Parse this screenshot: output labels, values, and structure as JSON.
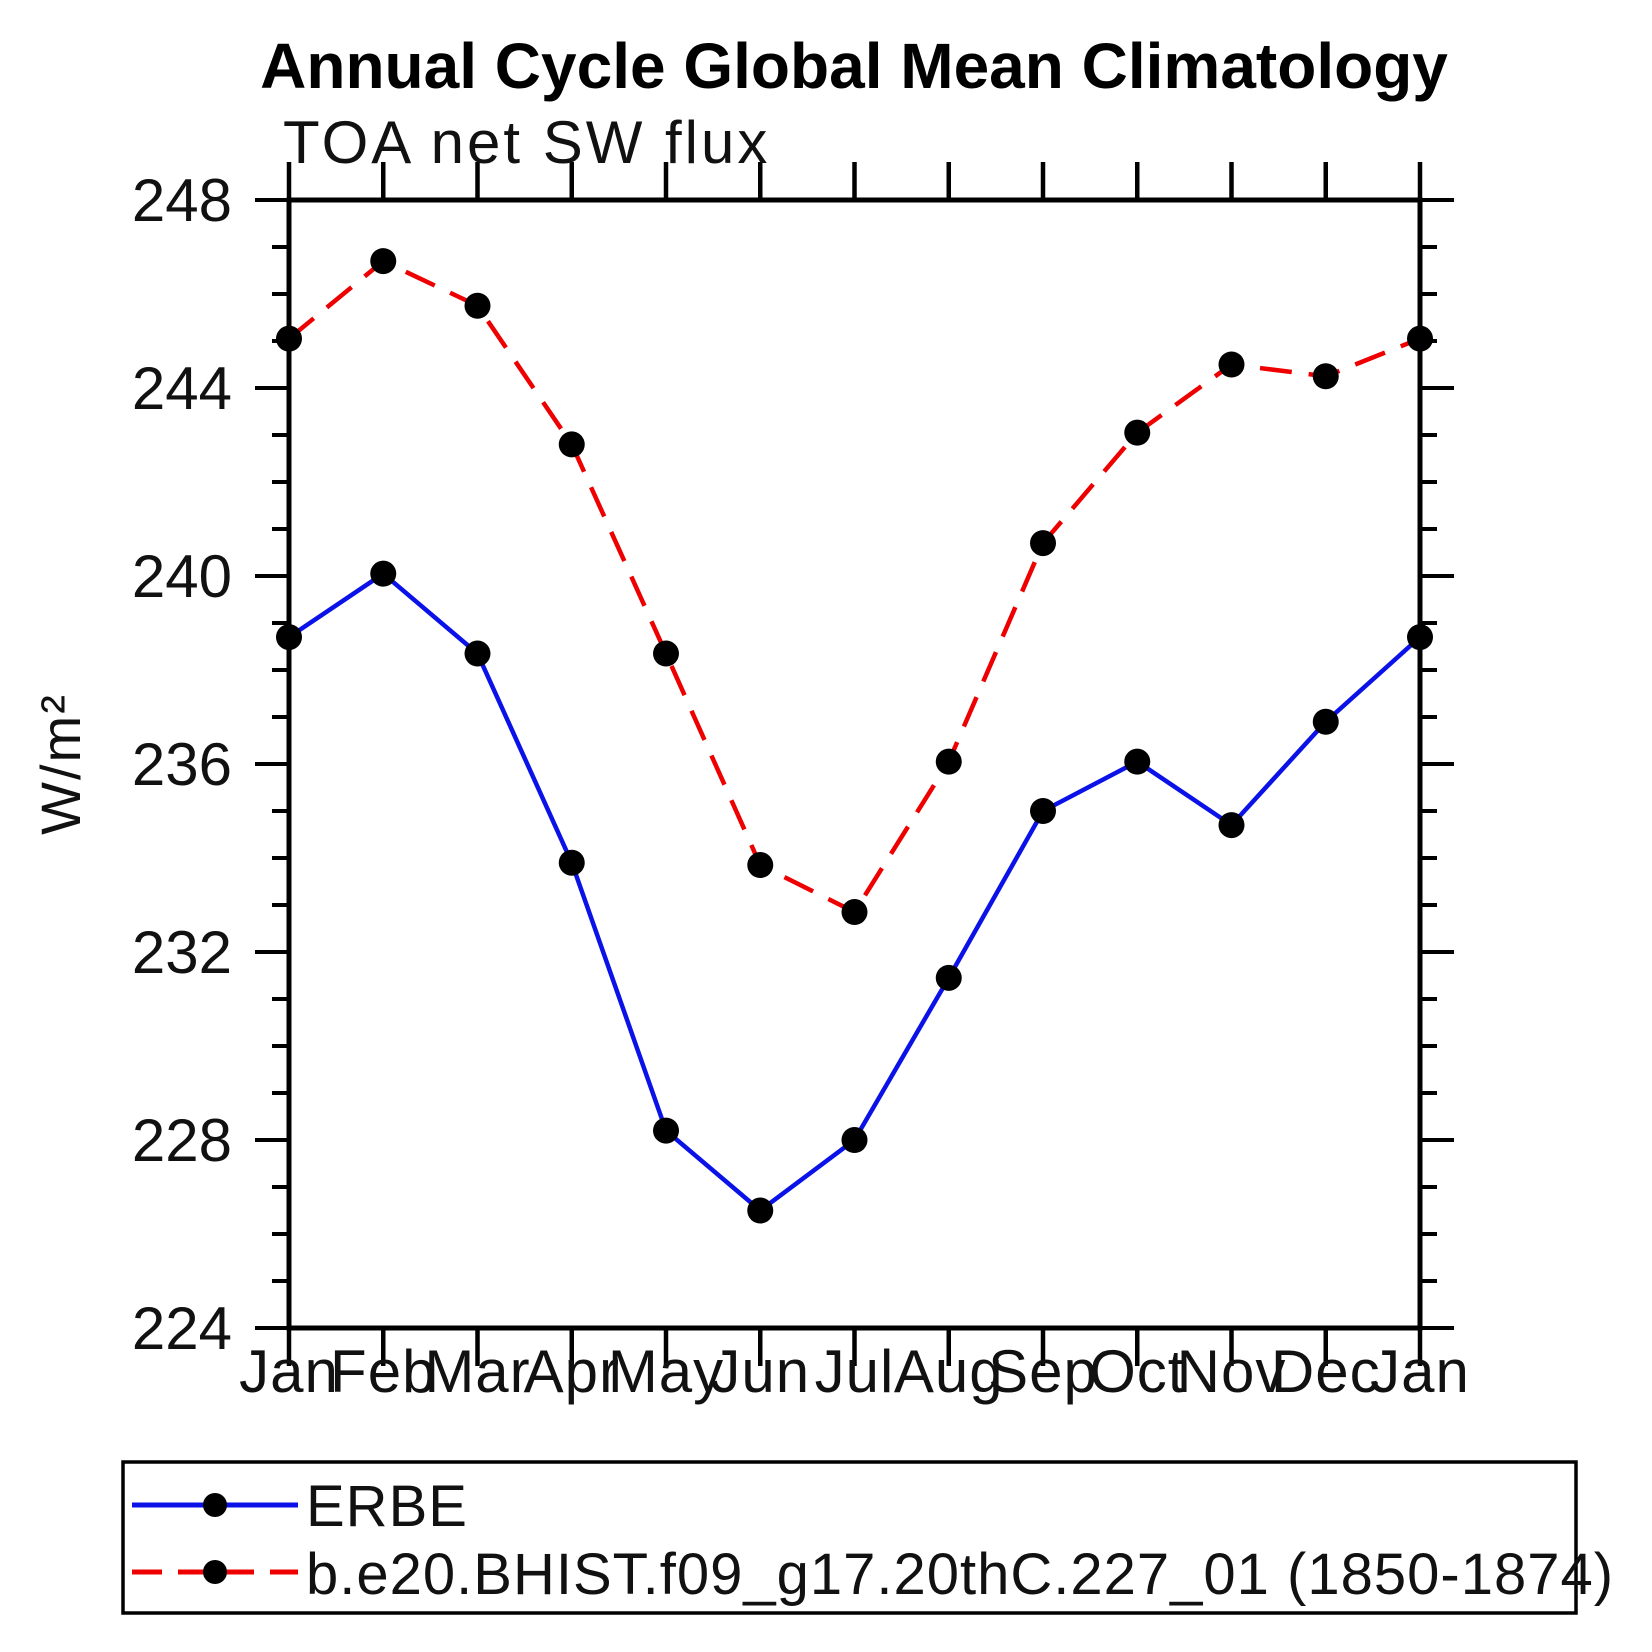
{
  "title": "Annual Cycle Global Mean Climatology",
  "subtitle": "TOA net SW flux",
  "y_axis": {
    "label": "W/m²",
    "min": 224,
    "max": 248,
    "major_step": 4,
    "minor_step": 1,
    "major_tick_labels": [
      "248",
      "244",
      "240",
      "236",
      "232",
      "228",
      "224"
    ]
  },
  "x_axis": {
    "labels": [
      "Jan",
      "Feb",
      "Mar",
      "Apr",
      "May",
      "Jun",
      "Jul",
      "Aug",
      "Sep",
      "Oct",
      "Nov",
      "Dec",
      "Jan"
    ]
  },
  "colors": {
    "erbe_line": "#0b12e8",
    "model_line": "#ee0000",
    "marker": "#000000",
    "axis": "#000000"
  },
  "legend": {
    "items": [
      {
        "label": "ERBE",
        "color": "#0b12e8",
        "style": "solid"
      },
      {
        "label": "b.e20.BHIST.f09_g17.20thC.227_01 (1850-1874)",
        "color": "#ee0000",
        "style": "dashed"
      }
    ]
  },
  "chart_data": {
    "type": "line",
    "title": "Annual Cycle Global Mean Climatology",
    "subtitle": "TOA net SW flux",
    "ylabel": "W/m²",
    "xlabel": "",
    "ylim": [
      224,
      248
    ],
    "grid": false,
    "legend_position": "bottom-left-box",
    "categories": [
      "Jan",
      "Feb",
      "Mar",
      "Apr",
      "May",
      "Jun",
      "Jul",
      "Aug",
      "Sep",
      "Oct",
      "Nov",
      "Dec",
      "Jan"
    ],
    "series": [
      {
        "name": "ERBE",
        "color": "#0b12e8",
        "line_style": "solid",
        "marker": "filled-circle",
        "values": [
          238.7,
          240.05,
          238.35,
          233.9,
          228.2,
          226.5,
          228.0,
          231.45,
          235.0,
          236.05,
          234.7,
          236.9,
          238.7
        ]
      },
      {
        "name": "b.e20.BHIST.f09_g17.20thC.227_01 (1850-1874)",
        "color": "#ee0000",
        "line_style": "dashed",
        "marker": "filled-circle",
        "values": [
          245.05,
          246.7,
          245.75,
          242.8,
          238.35,
          233.85,
          232.85,
          236.05,
          240.7,
          243.05,
          244.5,
          244.25,
          245.05
        ]
      }
    ]
  }
}
